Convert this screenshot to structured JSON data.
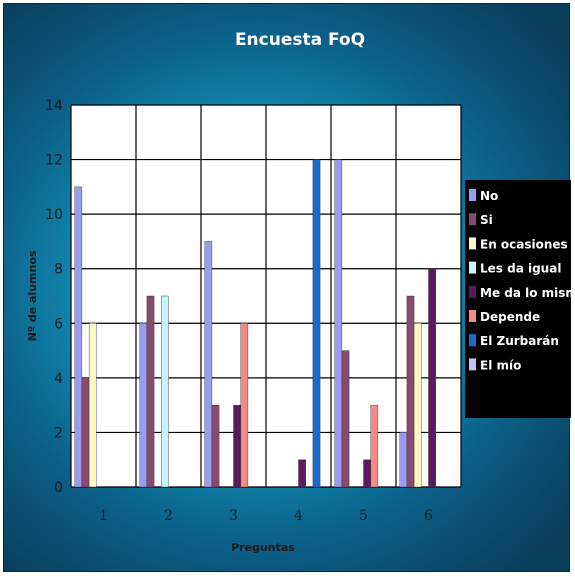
{
  "chart_data": {
    "type": "bar",
    "title": "Encuesta FoQ",
    "xlabel": "Preguntas",
    "ylabel": "Nº de alumnos",
    "categories": [
      "1",
      "2",
      "3",
      "4",
      "5",
      "6"
    ],
    "ylim": [
      0,
      14
    ],
    "yticks": [
      "0",
      "2",
      "4",
      "6",
      "8",
      "10",
      "12",
      "14"
    ],
    "grid": true,
    "legend_position": "right",
    "series": [
      {
        "name": "No",
        "color": "#9a9cf0",
        "values": [
          11,
          6,
          9,
          0,
          12,
          2
        ]
      },
      {
        "name": "Si",
        "color": "#8a4a6e",
        "values": [
          4,
          7,
          3,
          0,
          5,
          7
        ]
      },
      {
        "name": "En ocasiones",
        "color": "#fbf8c4",
        "values": [
          6,
          0,
          0,
          0,
          0,
          6
        ]
      },
      {
        "name": "Les da igual",
        "color": "#c6f4f8",
        "values": [
          0,
          7,
          0,
          0,
          0,
          0
        ]
      },
      {
        "name": "Me da lo mismo",
        "color": "#5a1a5e",
        "values": [
          0,
          0,
          3,
          1,
          1,
          8
        ]
      },
      {
        "name": "Depende",
        "color": "#f48a84",
        "values": [
          0,
          0,
          6,
          0,
          3,
          0
        ]
      },
      {
        "name": "El Zurbarán",
        "color": "#1b6ad0",
        "values": [
          0,
          0,
          0,
          12,
          0,
          0
        ]
      },
      {
        "name": "El mío",
        "color": "#c0c4f8",
        "values": [
          0,
          0,
          0,
          0,
          0,
          0
        ]
      }
    ]
  }
}
